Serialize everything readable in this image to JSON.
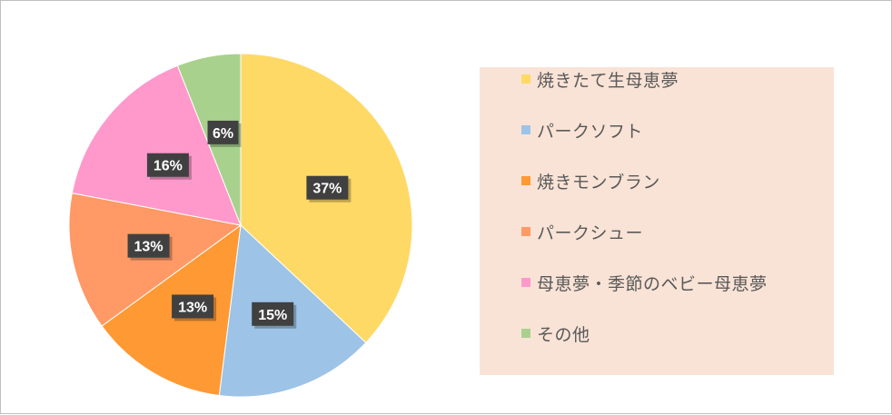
{
  "chart_data": {
    "type": "pie",
    "slices": [
      {
        "label": "焼きたて生母恵夢",
        "value": 37,
        "value_label": "37%",
        "color": "#ffd966"
      },
      {
        "label": "パークソフト",
        "value": 15,
        "value_label": "15%",
        "color": "#9dc3e6"
      },
      {
        "label": "焼きモンブラン",
        "value": 13,
        "value_label": "13%",
        "color": "#ff9933"
      },
      {
        "label": "パークシュー",
        "value": 13,
        "value_label": "13%",
        "color": "#ff9966"
      },
      {
        "label": "母恵夢・季節のベビー母恵夢",
        "value": 16,
        "value_label": "16%",
        "color": "#ff99cc"
      },
      {
        "label": "その他",
        "value": 6,
        "value_label": "6%",
        "color": "#a9d18e"
      }
    ],
    "legend_position": "right",
    "label_box_color": "#404040"
  }
}
